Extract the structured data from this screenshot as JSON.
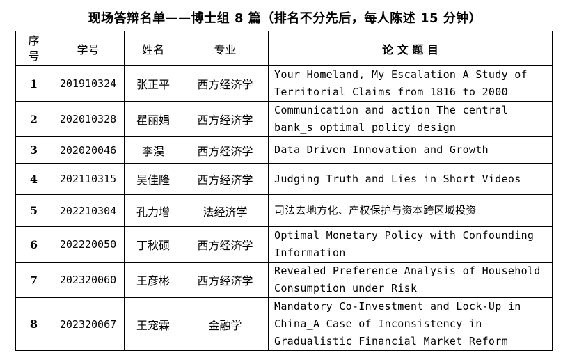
{
  "title": "现场答辩名单——博士组 8 篇（排名不分先后，每人陈述 15 分钟）",
  "headers": {
    "seq": "序号",
    "id": "学号",
    "name": "姓名",
    "major": "专业",
    "paper": "论 文 题 目"
  },
  "rows": [
    {
      "seq": "1",
      "id": "201910324",
      "name": "张正平",
      "major": "西方经济学",
      "paper": "Your Homeland, My Escalation A Study of Territorial Claims from 1816 to 2000"
    },
    {
      "seq": "2",
      "id": "202010328",
      "name": "瞿丽娟",
      "major": "西方经济学",
      "paper": "Communication and action_The central bank_s optimal policy design"
    },
    {
      "seq": "3",
      "id": "202020046",
      "name": "李淏",
      "major": "西方经济学",
      "paper": "Data Driven Innovation and Growth"
    },
    {
      "seq": "4",
      "id": "202110315",
      "name": "吴佳隆",
      "major": "西方经济学",
      "paper": "Judging Truth and Lies in Short Videos"
    },
    {
      "seq": "5",
      "id": "202210304",
      "name": "孔力增",
      "major": "法经济学",
      "paper": "司法去地方化、产权保护与资本跨区域投资"
    },
    {
      "seq": "6",
      "id": "202220050",
      "name": "丁秋硕",
      "major": "西方经济学",
      "paper": "Optimal Monetary Policy with Confounding Information"
    },
    {
      "seq": "7",
      "id": "202320060",
      "name": "王彦彬",
      "major": "西方经济学",
      "paper": "Revealed Preference Analysis of Household Consumption under Risk"
    },
    {
      "seq": "8",
      "id": "202320067",
      "name": "王宠霖",
      "major": "金融学",
      "paper": "Mandatory Co-Investment and Lock-Up in China_A Case of Inconsistency in Gradualistic Financial Market Reform"
    }
  ]
}
